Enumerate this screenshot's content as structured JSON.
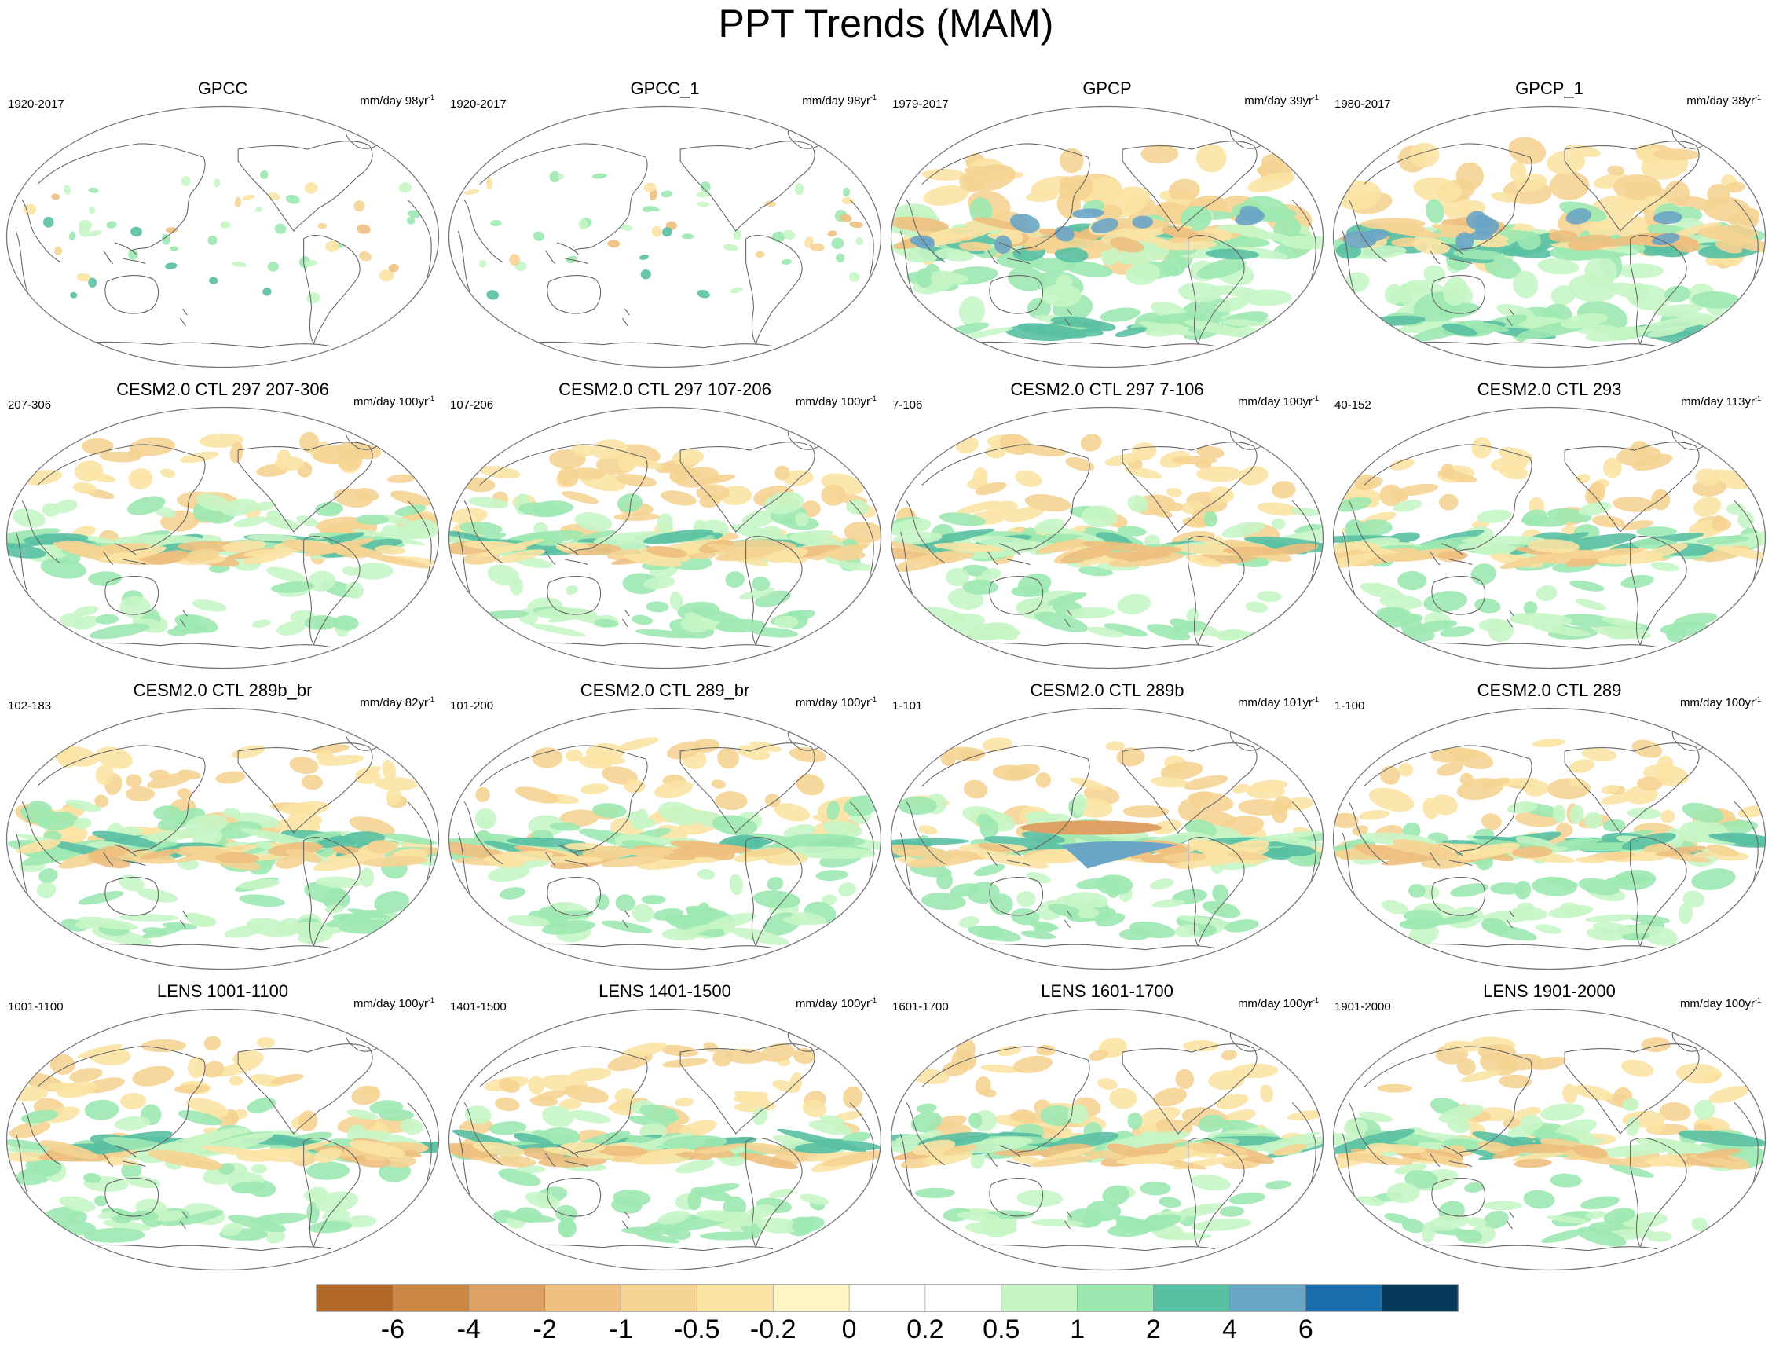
{
  "title": "PPT Trends (MAM)",
  "panels": [
    {
      "title": "GPCC",
      "period": "1920-2017",
      "units": "mm/day 98yr",
      "units_exp": "-1",
      "field": "sparse"
    },
    {
      "title": "GPCC_1",
      "period": "1920-2017",
      "units": "mm/day 98yr",
      "units_exp": "-1",
      "field": "sparse"
    },
    {
      "title": "GPCP",
      "period": "1979-2017",
      "units": "mm/day 39yr",
      "units_exp": "-1",
      "field": "gpcp"
    },
    {
      "title": "GPCP_1",
      "period": "1980-2017",
      "units": "mm/day 38yr",
      "units_exp": "-1",
      "field": "gpcp"
    },
    {
      "title": "CESM2.0 CTL 297 207-306",
      "period": "207-306",
      "units": "mm/day 100yr",
      "units_exp": "-1",
      "field": "model"
    },
    {
      "title": "CESM2.0 CTL 297 107-206",
      "period": "107-206",
      "units": "mm/day 100yr",
      "units_exp": "-1",
      "field": "model"
    },
    {
      "title": "CESM2.0 CTL 297 7-106",
      "period": "7-106",
      "units": "mm/day 100yr",
      "units_exp": "-1",
      "field": "model"
    },
    {
      "title": "CESM2.0 CTL 293",
      "period": "40-152",
      "units": "mm/day 113yr",
      "units_exp": "-1",
      "field": "model"
    },
    {
      "title": "CESM2.0 CTL 289b_br",
      "period": "102-183",
      "units": "mm/day 82yr",
      "units_exp": "-1",
      "field": "model"
    },
    {
      "title": "CESM2.0 CTL 289_br",
      "period": "101-200",
      "units": "mm/day 100yr",
      "units_exp": "-1",
      "field": "model"
    },
    {
      "title": "CESM2.0 CTL 289b",
      "period": "1-101",
      "units": "mm/day 101yr",
      "units_exp": "-1",
      "field": "model-strong"
    },
    {
      "title": "CESM2.0 CTL 289",
      "period": "1-100",
      "units": "mm/day 100yr",
      "units_exp": "-1",
      "field": "model"
    },
    {
      "title": "LENS 1001-1100",
      "period": "1001-1100",
      "units": "mm/day 100yr",
      "units_exp": "-1",
      "field": "model"
    },
    {
      "title": "LENS 1401-1500",
      "period": "1401-1500",
      "units": "mm/day 100yr",
      "units_exp": "-1",
      "field": "model"
    },
    {
      "title": "LENS 1601-1700",
      "period": "1601-1700",
      "units": "mm/day 100yr",
      "units_exp": "-1",
      "field": "model"
    },
    {
      "title": "LENS 1901-2000",
      "period": "1901-2000",
      "units": "mm/day 100yr",
      "units_exp": "-1",
      "field": "model"
    }
  ],
  "colorbar": {
    "labels": [
      "-6",
      "-4",
      "-2",
      "-1",
      "-0.5",
      "-0.2",
      "0",
      "0.2",
      "0.5",
      "1",
      "2",
      "4",
      "6"
    ],
    "colors": [
      "#b2692a",
      "#cc8844",
      "#dda263",
      "#eebf7e",
      "#f5d392",
      "#fbe3a4",
      "#fff5c5",
      "#ffffff",
      "#ffffff",
      "#c6f5c5",
      "#9de8b1",
      "#59c0a3",
      "#6aa5c6",
      "#1a70ad",
      "#063a5b"
    ]
  }
}
